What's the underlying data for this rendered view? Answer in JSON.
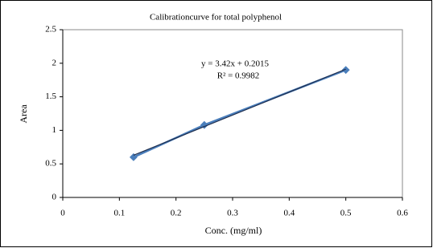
{
  "chart_data": {
    "type": "scatter",
    "title": "Calibrationcurve for total polyphenol",
    "x_label": "Conc. (mg/ml)",
    "y_label": "Area",
    "x": [
      0.125,
      0.25,
      0.5
    ],
    "series": [
      {
        "name": "Area",
        "color": "#4a7ebb",
        "values": [
          0.6,
          1.08,
          1.9
        ]
      }
    ],
    "trendline": {
      "equation": "y = 3.42x + 0.2015",
      "r_squared": "R² = 0.9982",
      "slope": 3.42,
      "intercept": 0.2015,
      "color": "#1f2f4f"
    },
    "xlim": [
      0,
      0.6
    ],
    "xticks": [
      0,
      0.1,
      0.2,
      0.3,
      0.4,
      0.5,
      0.6
    ],
    "ylim": [
      0,
      2.5
    ],
    "yticks": [
      0,
      0.5,
      1,
      1.5,
      2,
      2.5
    ],
    "grid": false
  }
}
